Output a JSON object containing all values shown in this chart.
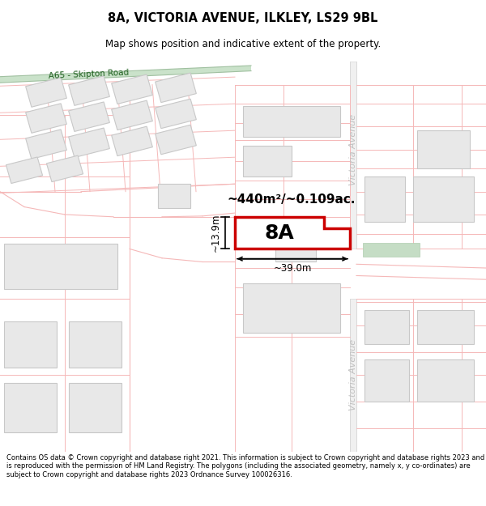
{
  "title_line1": "8A, VICTORIA AVENUE, ILKLEY, LS29 9BL",
  "title_line2": "Map shows position and indicative extent of the property.",
  "footer_text": "Contains OS data © Crown copyright and database right 2021. This information is subject to Crown copyright and database rights 2023 and is reproduced with the permission of HM Land Registry. The polygons (including the associated geometry, namely x, y co-ordinates) are subject to Crown copyright and database rights 2023 Ordnance Survey 100026316.",
  "background_color": "#ffffff",
  "plot_outline_color": "#cc0000",
  "road_line_color": "#f5b8b8",
  "building_fill_color": "#e8e8e8",
  "building_outline_color": "#c8c8c8",
  "road_green_fill": "#c5dfc5",
  "road_green_border": "#a0c0a0",
  "road_label_color": "#1a5c1a",
  "victoria_avenue_color": "#d8d8d8",
  "victoria_text_color": "#c0c0c0",
  "area_text": "~440m²/~0.109ac.",
  "label_8A": "8A",
  "dim_width": "~39.0m",
  "dim_height": "~13.9m",
  "map_xlim": [
    0,
    600
  ],
  "map_ylim": [
    0,
    510
  ]
}
